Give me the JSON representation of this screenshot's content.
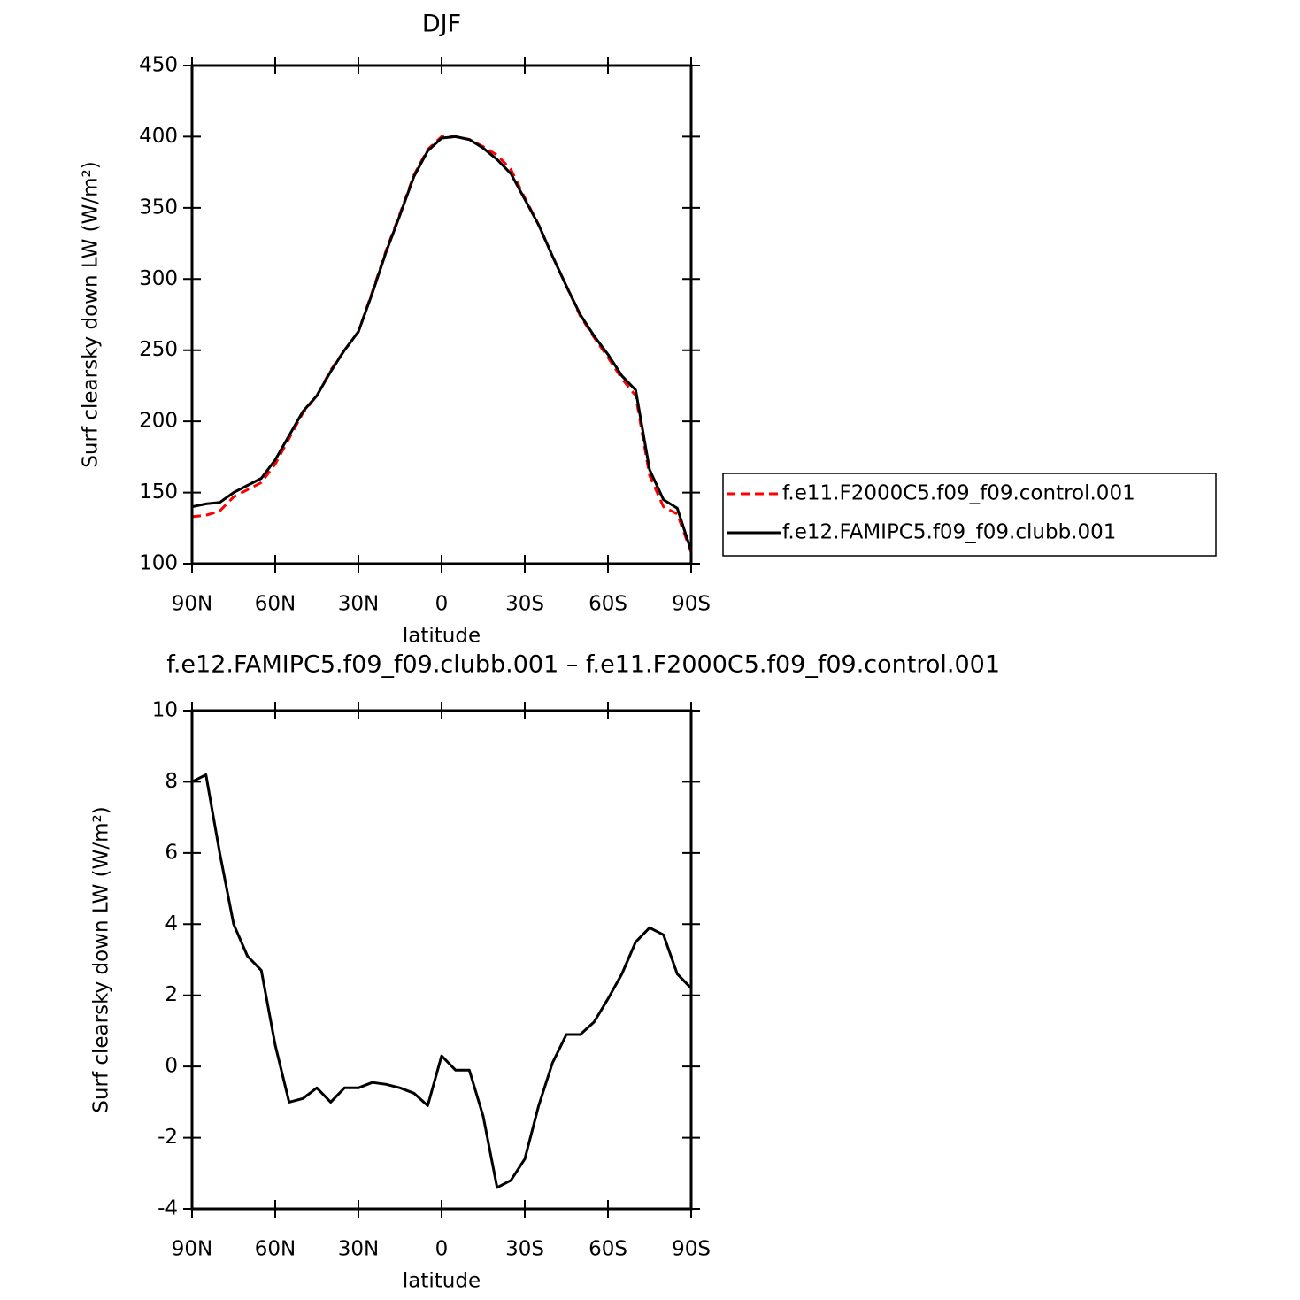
{
  "chart_data": [
    {
      "type": "line",
      "title": "DJF",
      "xlabel": "latitude",
      "ylabel": "Surf clearsky down LW (W/m²)",
      "x": [
        90,
        85,
        80,
        75,
        70,
        65,
        60,
        55,
        50,
        45,
        40,
        35,
        30,
        25,
        20,
        15,
        10,
        5,
        0,
        -5,
        -10,
        -15,
        -20,
        -25,
        -30,
        -35,
        -40,
        -45,
        -50,
        -55,
        -60,
        -65,
        -70,
        -75,
        -80,
        -85,
        -90
      ],
      "series": [
        {
          "name": "f.e11.F2000C5.f09_f09.control.001",
          "color": "#ff0000",
          "dash": true,
          "values": [
            133,
            134,
            137,
            147,
            152,
            157,
            170,
            188,
            206,
            218,
            236,
            250,
            263,
            291,
            320,
            346,
            373,
            391,
            400,
            400,
            398,
            393,
            387,
            377,
            357,
            338,
            316,
            295,
            274,
            259,
            245,
            230,
            218,
            162,
            140,
            135,
            108
          ]
        },
        {
          "name": "f.e12.FAMIPC5.f09_f09.clubb.001",
          "color": "#000000",
          "dash": false,
          "values": [
            140,
            142,
            143,
            150,
            155,
            160,
            173,
            190,
            207,
            218,
            235,
            250,
            263,
            290,
            319,
            345,
            372,
            390,
            399,
            400,
            398,
            392,
            384,
            374,
            356,
            338,
            316,
            295,
            275,
            260,
            247,
            232,
            222,
            166,
            145,
            139,
            109
          ]
        }
      ],
      "xlim": [
        90,
        -90
      ],
      "xticks": [
        {
          "value": 90,
          "label": "90N"
        },
        {
          "value": 60,
          "label": "60N"
        },
        {
          "value": 30,
          "label": "30N"
        },
        0,
        {
          "value": -30,
          "label": "30S"
        },
        {
          "value": -60,
          "label": "60S"
        },
        {
          "value": -90,
          "label": "90S"
        }
      ],
      "ylim": [
        100,
        450
      ],
      "yticks": [
        100,
        150,
        200,
        250,
        300,
        350,
        400,
        450
      ],
      "legend": "right"
    },
    {
      "type": "line",
      "title": "f.e12.FAMIPC5.f09_f09.clubb.001 – f.e11.F2000C5.f09_f09.control.001",
      "xlabel": "latitude",
      "ylabel": "Surf clearsky down LW (W/m²)",
      "x": [
        90,
        85,
        80,
        75,
        70,
        65,
        60,
        55,
        50,
        45,
        40,
        35,
        30,
        25,
        20,
        15,
        10,
        5,
        0,
        -5,
        -10,
        -15,
        -20,
        -25,
        -30,
        -35,
        -40,
        -45,
        -50,
        -55,
        -60,
        -65,
        -70,
        -75,
        -80,
        -85,
        -90
      ],
      "values": [
        8.0,
        8.2,
        6.0,
        4.0,
        3.1,
        2.7,
        0.6,
        -1.0,
        -0.9,
        -0.6,
        -1.0,
        -0.6,
        -0.6,
        -0.45,
        -0.5,
        -0.6,
        -0.75,
        -1.1,
        0.3,
        -0.1,
        -0.1,
        -1.4,
        -3.4,
        -3.2,
        -2.6,
        -1.1,
        0.1,
        0.9,
        0.9,
        1.25,
        1.9,
        2.6,
        3.5,
        3.9,
        3.7,
        2.6,
        2.2
      ],
      "color": "#000000",
      "xlim": [
        90,
        -90
      ],
      "xticks": [
        {
          "value": 90,
          "label": "90N"
        },
        {
          "value": 60,
          "label": "60N"
        },
        {
          "value": 30,
          "label": "30N"
        },
        0,
        {
          "value": -30,
          "label": "30S"
        },
        {
          "value": -60,
          "label": "60S"
        },
        {
          "value": -90,
          "label": "90S"
        }
      ],
      "ylim": [
        -4,
        10
      ],
      "yticks": [
        -4,
        -2,
        0,
        2,
        4,
        6,
        8,
        10
      ]
    }
  ]
}
